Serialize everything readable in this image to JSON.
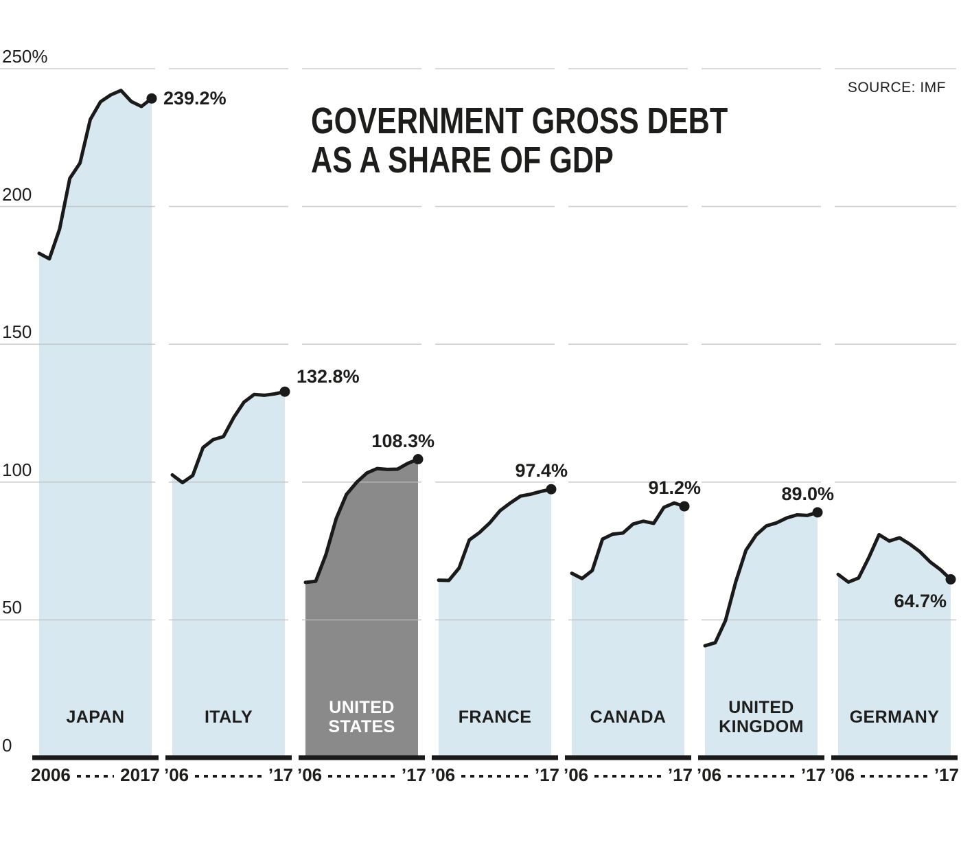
{
  "header": {
    "title_lines": [
      "GOVERNMENT GROSS DEBT",
      "AS A SHARE OF GDP"
    ],
    "source": "SOURCE: IMF"
  },
  "y_axis": {
    "ticks": [
      {
        "label": "250%",
        "value": 250
      },
      {
        "label": "200",
        "value": 200
      },
      {
        "label": "150",
        "value": 150
      },
      {
        "label": "100",
        "value": 100
      },
      {
        "label": "50",
        "value": 50
      },
      {
        "label": "0",
        "value": 0
      }
    ]
  },
  "chart_data": {
    "type": "area",
    "title": "Government gross debt as a share of GDP",
    "unit": "percent of GDP",
    "source": "IMF",
    "x": [
      2006,
      2007,
      2008,
      2009,
      2010,
      2011,
      2012,
      2013,
      2014,
      2015,
      2016,
      2017
    ],
    "ylim": [
      0,
      250
    ],
    "gridline_values": [
      50,
      100,
      150,
      200,
      250
    ],
    "legend_position": "none",
    "colors": {
      "fill_default": "#d7e8f1",
      "fill_highlight": "#8a8a8a",
      "line": "#1a1a1a",
      "grid": "#bdbdbd",
      "text": "#1d1d1b",
      "label_highlight": "#ffffff"
    },
    "series": [
      {
        "name_lines": [
          "JAPAN"
        ],
        "axis_left": "2006",
        "axis_right": "2017",
        "end_label": "239.2%",
        "label_placement": "right",
        "highlight": false,
        "values": [
          183.0,
          181.0,
          191.8,
          210.2,
          215.8,
          231.6,
          238.0,
          240.5,
          242.1,
          238.1,
          236.3,
          239.2
        ]
      },
      {
        "name_lines": [
          "ITALY"
        ],
        "axis_left": "’06",
        "axis_right": "’17",
        "end_label": "132.8%",
        "label_placement": "above-right",
        "highlight": false,
        "values": [
          102.6,
          99.8,
          102.4,
          112.5,
          115.4,
          116.5,
          123.4,
          129.0,
          131.8,
          131.5,
          132.0,
          132.8
        ]
      },
      {
        "name_lines": [
          "UNITED",
          "STATES"
        ],
        "axis_left": "’06",
        "axis_right": "’17",
        "end_label": "108.3%",
        "label_placement": "above",
        "highlight": true,
        "values": [
          63.6,
          64.0,
          73.7,
          86.7,
          95.5,
          99.9,
          103.3,
          104.9,
          104.6,
          104.7,
          106.8,
          108.3
        ]
      },
      {
        "name_lines": [
          "FRANCE"
        ],
        "axis_left": "’06",
        "axis_right": "’17",
        "end_label": "97.4%",
        "label_placement": "above",
        "highlight": false,
        "values": [
          64.4,
          64.3,
          68.8,
          79.0,
          81.7,
          85.2,
          89.6,
          92.4,
          94.9,
          95.6,
          96.6,
          97.4
        ]
      },
      {
        "name_lines": [
          "CANADA"
        ],
        "axis_left": "’06",
        "axis_right": "’17",
        "end_label": "91.2%",
        "label_placement": "above",
        "highlight": false,
        "values": [
          66.9,
          65.0,
          67.9,
          79.3,
          81.1,
          81.5,
          84.8,
          85.8,
          85.0,
          90.8,
          92.4,
          91.2
        ]
      },
      {
        "name_lines": [
          "UNITED",
          "KINGDOM"
        ],
        "axis_left": "’06",
        "axis_right": "’17",
        "end_label": "89.0%",
        "label_placement": "above",
        "highlight": false,
        "values": [
          40.6,
          41.7,
          49.7,
          63.7,
          75.2,
          80.8,
          84.1,
          85.2,
          87.0,
          88.1,
          87.9,
          89.0
        ]
      },
      {
        "name_lines": [
          "GERMANY"
        ],
        "axis_left": "’06",
        "axis_right": "’17",
        "end_label": "64.7%",
        "label_placement": "below",
        "highlight": false,
        "values": [
          66.5,
          63.7,
          65.2,
          72.6,
          80.9,
          78.6,
          79.8,
          77.5,
          74.7,
          71.0,
          68.2,
          64.7
        ]
      }
    ]
  }
}
